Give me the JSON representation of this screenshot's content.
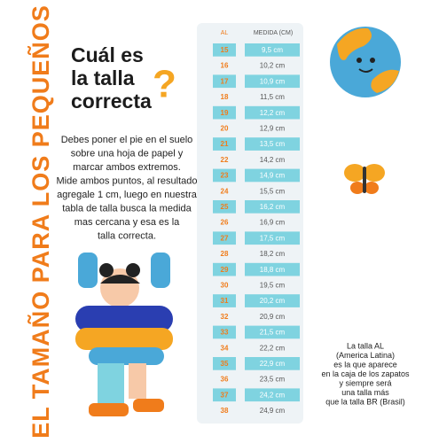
{
  "banner": "EL TAMAÑO PARA LOS PEQUEÑOS",
  "title": {
    "lines": [
      "Cuál es",
      "la talla",
      "correcta"
    ],
    "mark": "?"
  },
  "instructions": [
    "Debes poner el pie en el suelo",
    "sobre una hoja de papel y",
    "marcar ambos extremos.",
    "Mide ambos puntos, al resultado",
    "agregale 1 cm, luego en nuestra",
    "tabla de talla busca la medida",
    "mas cercana y esa es la",
    "talla correcta."
  ],
  "table": {
    "header": [
      "AL",
      "MEDIDA (CM)"
    ],
    "rows": [
      [
        "15",
        "9,5 cm"
      ],
      [
        "16",
        "10,2 cm"
      ],
      [
        "17",
        "10,9 cm"
      ],
      [
        "18",
        "11,5 cm"
      ],
      [
        "19",
        "12,2 cm"
      ],
      [
        "20",
        "12,9 cm"
      ],
      [
        "21",
        "13,5 cm"
      ],
      [
        "22",
        "14,2 cm"
      ],
      [
        "23",
        "14,9 cm"
      ],
      [
        "24",
        "15,5 cm"
      ],
      [
        "25",
        "16,2 cm"
      ],
      [
        "26",
        "16,9 cm"
      ],
      [
        "27",
        "17,5 cm"
      ],
      [
        "28",
        "18,2 cm"
      ],
      [
        "29",
        "18,8 cm"
      ],
      [
        "30",
        "19,5 cm"
      ],
      [
        "31",
        "20,2 cm"
      ],
      [
        "32",
        "20,9 cm"
      ],
      [
        "33",
        "21,5 cm"
      ],
      [
        "34",
        "22,2 cm"
      ],
      [
        "35",
        "22,9 cm"
      ],
      [
        "36",
        "23,5 cm"
      ],
      [
        "37",
        "24,2 cm"
      ],
      [
        "38",
        "24,9 cm"
      ]
    ]
  },
  "note": [
    "La talla AL",
    "(America Latina)",
    "es la que aparece",
    "en la caja de los zapatos",
    "y siempre será",
    "una talla más",
    "que la talla BR (Brasil)"
  ]
}
